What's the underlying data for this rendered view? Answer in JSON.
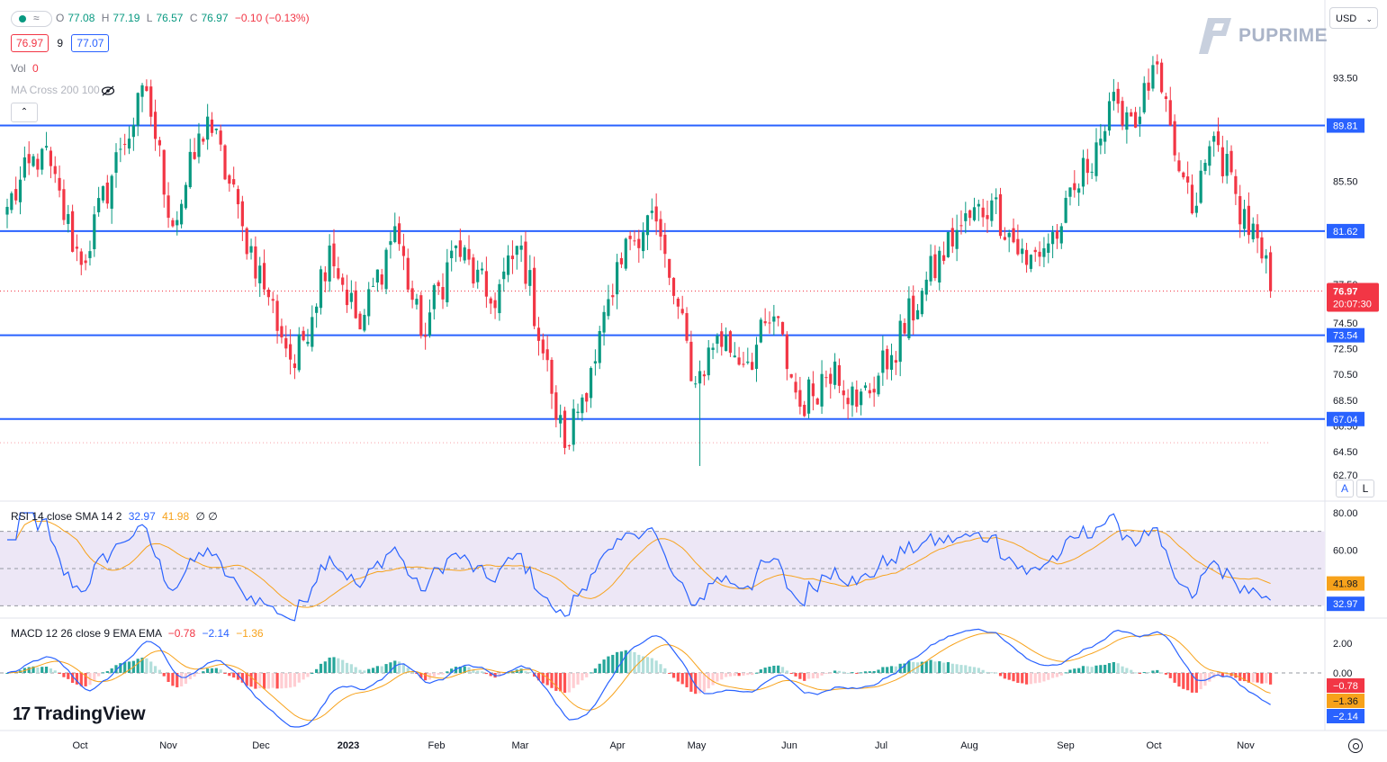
{
  "header": {
    "open_label": "O",
    "open": "77.08",
    "high_label": "H",
    "high": "77.19",
    "low_label": "L",
    "low": "76.57",
    "close_label": "C",
    "close": "76.97",
    "change": "−0.10 (−0.13%)",
    "bid": "76.97",
    "spread": "9",
    "ask": "77.07",
    "wave_glyph": "≈"
  },
  "vol": {
    "label": "Vol",
    "value": "0"
  },
  "ma_cross": {
    "label": "MA Cross 200 100",
    "icon": "eye-crossed-icon"
  },
  "currency": {
    "label": "USD"
  },
  "brand": {
    "name": "PUPRIME"
  },
  "tradingview": {
    "name": "TradingView"
  },
  "scale_buttons": {
    "auto": "A",
    "log": "L"
  },
  "rsi_legend": {
    "label": "RSI 14 close SMA 14 2",
    "rsi": "32.97",
    "sma": "41.98",
    "extra": "∅ ∅"
  },
  "macd_legend": {
    "label": "MACD 12 26 close 9 EMA EMA",
    "hist": "−0.78",
    "macd": "−2.14",
    "signal": "−1.36"
  },
  "colors": {
    "up": "#089981",
    "down": "#f23645",
    "level": "#2962ff",
    "rsi": "#2962ff",
    "sma": "#f7a21b",
    "bg_band": "#ede7f6"
  },
  "chart_data": [
    {
      "type": "candlestick",
      "x_ticks": [
        "Oct",
        "Nov",
        "Dec",
        "2023",
        "Feb",
        "Mar",
        "Apr",
        "May",
        "Jun",
        "Jul",
        "Aug",
        "Sep",
        "Oct",
        "Nov"
      ],
      "y_ticks": [
        93.5,
        85.5,
        77.5,
        74.5,
        72.5,
        70.5,
        68.5,
        66.5,
        64.5,
        62.7
      ],
      "ylim": [
        62.7,
        95.5
      ],
      "horizontal_levels": [
        89.81,
        81.62,
        73.54,
        67.04
      ],
      "current_price": 76.97,
      "countdown": "20:07:30",
      "dotted_low_level": 65.2,
      "anchors": [
        [
          0,
          83.5
        ],
        [
          8,
          88
        ],
        [
          17,
          79
        ],
        [
          26,
          88
        ],
        [
          32,
          92.5
        ],
        [
          38,
          82
        ],
        [
          46,
          90.5
        ],
        [
          54,
          82
        ],
        [
          60,
          76.5
        ],
        [
          66,
          71
        ],
        [
          74,
          80.5
        ],
        [
          81,
          74
        ],
        [
          89,
          82
        ],
        [
          95,
          73.5
        ],
        [
          103,
          80.5
        ],
        [
          111,
          76
        ],
        [
          118,
          80.5
        ],
        [
          125,
          69
        ],
        [
          128,
          64.8
        ],
        [
          134,
          71
        ],
        [
          139,
          76.5
        ],
        [
          143,
          81
        ],
        [
          148,
          83.2
        ],
        [
          152,
          78
        ],
        [
          158,
          69.8
        ],
        [
          163,
          73.5
        ],
        [
          170,
          71.5
        ],
        [
          176,
          75
        ],
        [
          182,
          68
        ],
        [
          190,
          71.5
        ],
        [
          195,
          68
        ],
        [
          203,
          72
        ],
        [
          210,
          77
        ],
        [
          218,
          81.7
        ],
        [
          226,
          84
        ],
        [
          234,
          79
        ],
        [
          242,
          82
        ],
        [
          250,
          88.5
        ],
        [
          255,
          91.5
        ],
        [
          260,
          90.5
        ],
        [
          263,
          94.5
        ],
        [
          268,
          87.5
        ],
        [
          272,
          83
        ],
        [
          277,
          89
        ],
        [
          282,
          84.5
        ],
        [
          288,
          79.5
        ],
        [
          290,
          77.1
        ]
      ],
      "last_index": 290
    },
    {
      "type": "line",
      "name": "RSI",
      "ylim": [
        20,
        80
      ],
      "y_ticks": [
        80,
        60
      ],
      "band": [
        30,
        70
      ],
      "last_values": {
        "rsi": 32.97,
        "sma": 41.98
      }
    },
    {
      "type": "bar",
      "name": "MACD",
      "y_ticks": [
        2.0,
        0.0
      ],
      "last_values": {
        "hist": -0.78,
        "signal": -1.36,
        "macd": -2.14
      }
    }
  ]
}
